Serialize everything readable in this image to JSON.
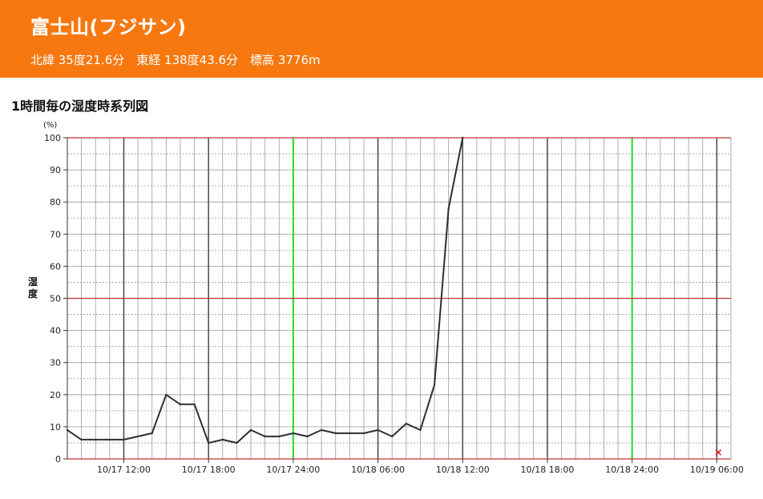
{
  "header": {
    "station_name": "富士山(フジサン)",
    "coordinates": "北緯 35度21.6分　東経 138度43.6分　標高 3776m"
  },
  "section_title": "1時間毎の湿度時系列図",
  "colors": {
    "header_bg": "#f6780f",
    "line": "#2e2e3a",
    "day_divider": "#3a3a44",
    "grid": "#9a9a9a",
    "day_boundary": "#22dd22",
    "ref_line": "#c33333",
    "marker": "#dd2222"
  },
  "chart_data": {
    "type": "line",
    "ylabel": "湿度",
    "unit": "(%)",
    "ylim": [
      0,
      100
    ],
    "yticks": [
      0,
      10,
      20,
      30,
      40,
      50,
      60,
      70,
      80,
      90,
      100
    ],
    "reference_lines_y": [
      0,
      50,
      100
    ],
    "x_hour_range": [
      "10/17 08:00",
      "10/19 07:00"
    ],
    "xtick_labels": [
      "10/17 12:00",
      "10/17 18:00",
      "10/17 24:00",
      "10/18 06:00",
      "10/18 12:00",
      "10/18 18:00",
      "10/18 24:00",
      "10/19 06:00"
    ],
    "series": [
      {
        "x": [
          "10/17 08:00",
          "10/17 09:00",
          "10/17 10:00",
          "10/17 11:00",
          "10/17 12:00",
          "10/17 13:00",
          "10/17 14:00",
          "10/17 15:00",
          "10/17 16:00",
          "10/17 17:00",
          "10/17 18:00",
          "10/17 19:00",
          "10/17 20:00",
          "10/17 21:00",
          "10/17 22:00",
          "10/17 23:00",
          "10/17 24:00",
          "10/18 01:00",
          "10/18 02:00",
          "10/18 03:00",
          "10/18 04:00",
          "10/18 05:00",
          "10/18 06:00",
          "10/18 07:00",
          "10/18 08:00",
          "10/18 09:00",
          "10/18 10:00",
          "10/18 11:00",
          "10/18 12:00"
        ],
        "values": [
          9,
          6,
          6,
          6,
          6,
          7,
          8,
          20,
          17,
          17,
          5,
          6,
          5,
          9,
          7,
          7,
          8,
          7,
          9,
          8,
          8,
          8,
          9,
          7,
          11,
          9,
          23,
          78,
          100
        ]
      }
    ],
    "markers": [
      {
        "x": "10/19 06:00",
        "symbol": "×"
      }
    ]
  }
}
